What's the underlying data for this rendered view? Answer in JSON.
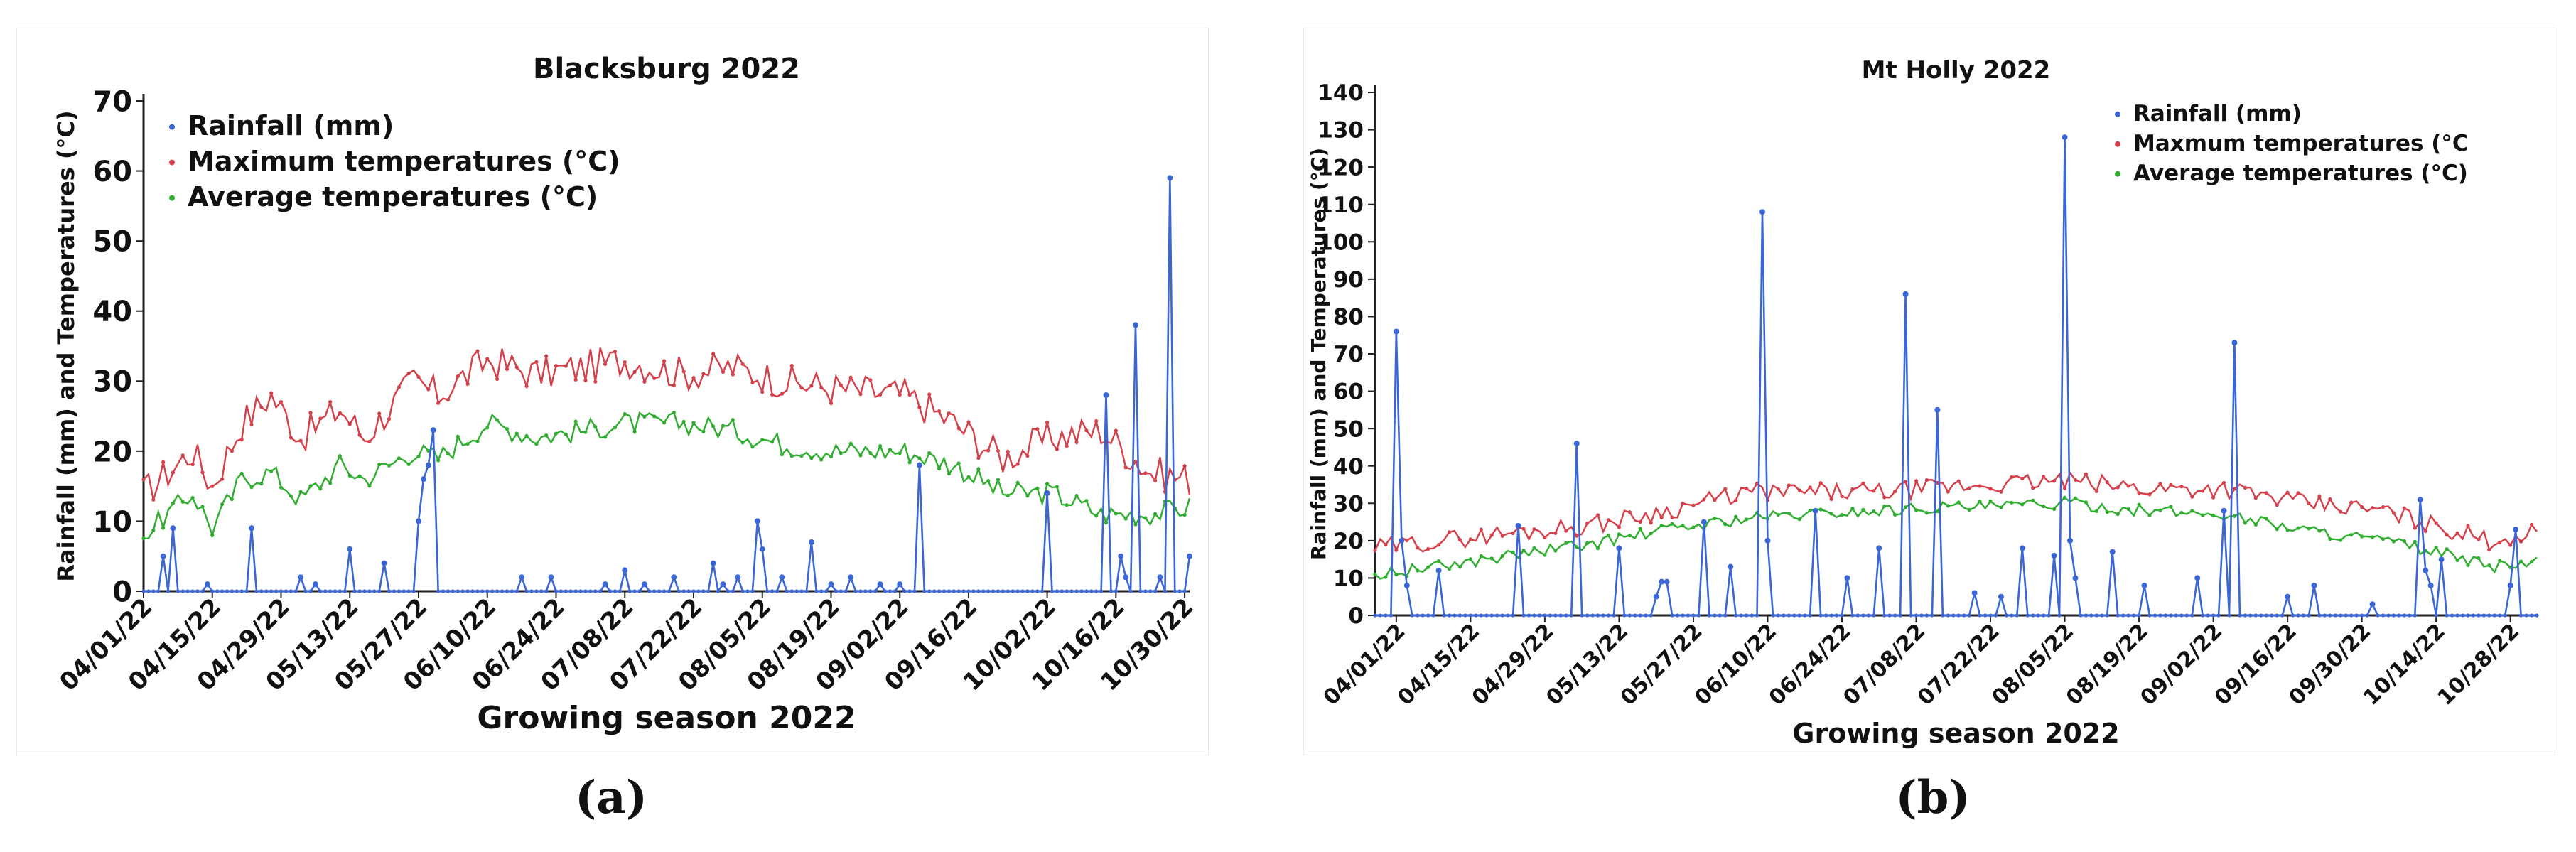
{
  "figure": {
    "captions": [
      "(a)",
      "(b)"
    ]
  },
  "chart_data": [
    {
      "type": "line",
      "title": "Blacksburg 2022",
      "xlabel": "Growing season 2022",
      "ylabel": "Rainfall (mm) and Temperatures (°C)",
      "ylim": [
        0,
        70
      ],
      "yticks": [
        0,
        10,
        20,
        30,
        40,
        50,
        60,
        70
      ],
      "xlim_dates": [
        "2022-04-01",
        "2022-10-31"
      ],
      "xtick_labels": [
        "04/01/22",
        "04/15/22",
        "04/29/22",
        "05/13/22",
        "05/27/22",
        "06/10/22",
        "06/24/22",
        "07/08/22",
        "07/22/22",
        "08/05/22",
        "08/19/22",
        "09/02/22",
        "09/16/22",
        "10/02/22",
        "10/16/22",
        "10/30/22"
      ],
      "grid": false,
      "legend_position": "top-left",
      "series": [
        {
          "name": "Rainfall (mm)",
          "color": "#3a66d6",
          "x": [
            "2022-04-01",
            "2022-04-04",
            "2022-04-05",
            "2022-04-06",
            "2022-04-07",
            "2022-04-08",
            "2022-04-11",
            "2022-04-13",
            "2022-04-14",
            "2022-04-20",
            "2022-04-22",
            "2022-04-23",
            "2022-04-24",
            "2022-04-25",
            "2022-04-26",
            "2022-05-02",
            "2022-05-03",
            "2022-05-05",
            "2022-05-06",
            "2022-05-08",
            "2022-05-09",
            "2022-05-10",
            "2022-05-12",
            "2022-05-13",
            "2022-05-14",
            "2022-05-16",
            "2022-05-17",
            "2022-05-19",
            "2022-05-20",
            "2022-05-21",
            "2022-05-26",
            "2022-05-27",
            "2022-05-28",
            "2022-05-29",
            "2022-05-30",
            "2022-06-02",
            "2022-06-03",
            "2022-06-04",
            "2022-06-12",
            "2022-06-13",
            "2022-06-14",
            "2022-06-16",
            "2022-06-17",
            "2022-06-18",
            "2022-06-22",
            "2022-06-23",
            "2022-06-24",
            "2022-06-28",
            "2022-06-29",
            "2022-06-30",
            "2022-07-02",
            "2022-07-03",
            "2022-07-04",
            "2022-07-06",
            "2022-07-07",
            "2022-07-08",
            "2022-07-11",
            "2022-07-12",
            "2022-07-13",
            "2022-07-17",
            "2022-07-18",
            "2022-07-19",
            "2022-07-26",
            "2022-07-27",
            "2022-07-28",
            "2022-07-29",
            "2022-07-30",
            "2022-07-31",
            "2022-08-03",
            "2022-08-04",
            "2022-08-05",
            "2022-08-08",
            "2022-08-09",
            "2022-08-10",
            "2022-08-14",
            "2022-08-15",
            "2022-08-16",
            "2022-08-18",
            "2022-08-19",
            "2022-08-20",
            "2022-08-22",
            "2022-08-23",
            "2022-08-24",
            "2022-08-28",
            "2022-08-29",
            "2022-08-30",
            "2022-09-01",
            "2022-09-02",
            "2022-09-03",
            "2022-09-06",
            "2022-09-07",
            "2022-09-08",
            "2022-09-12",
            "2022-09-13",
            "2022-09-14",
            "2022-09-28",
            "2022-09-29",
            "2022-09-30",
            "2022-10-01",
            "2022-10-02",
            "2022-10-03",
            "2022-10-12",
            "2022-10-13",
            "2022-10-14",
            "2022-10-15",
            "2022-10-16",
            "2022-10-17",
            "2022-10-18",
            "2022-10-19",
            "2022-10-20",
            "2022-10-21",
            "2022-10-22",
            "2022-10-25",
            "2022-10-26",
            "2022-10-27",
            "2022-10-28",
            "2022-10-29",
            "2022-10-30",
            "2022-10-31"
          ],
          "y": [
            0,
            0,
            5,
            0,
            9,
            0,
            0,
            0,
            1,
            0,
            0,
            9,
            0,
            0,
            0,
            0,
            2,
            0,
            1,
            0,
            0,
            0,
            0,
            6,
            0,
            0,
            0,
            0,
            4,
            0,
            0,
            10,
            16,
            18,
            23,
            0,
            0,
            0,
            0,
            0,
            0,
            0,
            2,
            0,
            0,
            2,
            0,
            0,
            0,
            0,
            0,
            0,
            1,
            0,
            0,
            3,
            0,
            1,
            0,
            0,
            2,
            0,
            4,
            0,
            1,
            0,
            0,
            2,
            0,
            10,
            6,
            0,
            2,
            0,
            0,
            7,
            0,
            0,
            1,
            0,
            0,
            2,
            0,
            0,
            1,
            0,
            0,
            1,
            0,
            18,
            0,
            0,
            0,
            0,
            0,
            0,
            0,
            0,
            0,
            14,
            0,
            0,
            0,
            28,
            0,
            0,
            5,
            2,
            0,
            38,
            0,
            0,
            2,
            0,
            59,
            0,
            0,
            0,
            5
          ]
        },
        {
          "name": "Maximum temperatures (°C)",
          "color": "#d6404a"
        },
        {
          "name": "Average temperatures (°C)",
          "color": "#2fae2f"
        }
      ]
    },
    {
      "type": "line",
      "title": "Mt Holly 2022",
      "xlabel": "Growing season 2022",
      "ylabel": "Rainfall (mm) and Temperatures (°C)",
      "ylim": [
        0,
        140
      ],
      "yticks": [
        0,
        10,
        20,
        30,
        40,
        50,
        60,
        70,
        80,
        90,
        100,
        110,
        120,
        130,
        140
      ],
      "xlim_dates": [
        "2022-03-28",
        "2022-11-02"
      ],
      "xtick_labels": [
        "04/01/22",
        "04/15/22",
        "04/29/22",
        "05/13/22",
        "05/27/22",
        "06/10/22",
        "06/24/22",
        "07/08/22",
        "07/22/22",
        "08/05/22",
        "08/19/22",
        "09/02/22",
        "09/16/22",
        "09/30/22",
        "10/14/22",
        "10/28/22"
      ],
      "grid": false,
      "legend_position": "top-right",
      "series": [
        {
          "name": "Rainfall (mm)",
          "color": "#3a66d6",
          "x": [
            "2022-03-28",
            "2022-03-31",
            "2022-04-01",
            "2022-04-02",
            "2022-04-03",
            "2022-04-04",
            "2022-04-08",
            "2022-04-09",
            "2022-04-10",
            "2022-04-23",
            "2022-04-24",
            "2022-04-25",
            "2022-05-04",
            "2022-05-05",
            "2022-05-06",
            "2022-05-12",
            "2022-05-13",
            "2022-05-14",
            "2022-05-19",
            "2022-05-20",
            "2022-05-21",
            "2022-05-22",
            "2022-05-23",
            "2022-05-28",
            "2022-05-29",
            "2022-05-30",
            "2022-06-02",
            "2022-06-03",
            "2022-06-04",
            "2022-06-08",
            "2022-06-09",
            "2022-06-10",
            "2022-06-11",
            "2022-06-18",
            "2022-06-19",
            "2022-06-20",
            "2022-06-24",
            "2022-06-25",
            "2022-06-26",
            "2022-06-30",
            "2022-07-01",
            "2022-07-02",
            "2022-07-05",
            "2022-07-06",
            "2022-07-07",
            "2022-07-11",
            "2022-07-12",
            "2022-07-13",
            "2022-07-18",
            "2022-07-19",
            "2022-07-20",
            "2022-07-23",
            "2022-07-24",
            "2022-07-25",
            "2022-07-27",
            "2022-07-28",
            "2022-07-29",
            "2022-08-02",
            "2022-08-03",
            "2022-08-04",
            "2022-08-05",
            "2022-08-06",
            "2022-08-07",
            "2022-08-08",
            "2022-08-09",
            "2022-08-13",
            "2022-08-14",
            "2022-08-15",
            "2022-08-19",
            "2022-08-20",
            "2022-08-21",
            "2022-08-29",
            "2022-08-30",
            "2022-08-31",
            "2022-09-03",
            "2022-09-04",
            "2022-09-05",
            "2022-09-06",
            "2022-09-07",
            "2022-09-15",
            "2022-09-16",
            "2022-09-17",
            "2022-09-20",
            "2022-09-21",
            "2022-09-22",
            "2022-10-01",
            "2022-10-02",
            "2022-10-03",
            "2022-10-10",
            "2022-10-11",
            "2022-10-12",
            "2022-10-13",
            "2022-10-14",
            "2022-10-15",
            "2022-10-16",
            "2022-10-27",
            "2022-10-28",
            "2022-10-29",
            "2022-10-30"
          ],
          "y": [
            0,
            0,
            76,
            20,
            8,
            0,
            0,
            12,
            0,
            0,
            24,
            0,
            0,
            46,
            0,
            0,
            18,
            0,
            0,
            5,
            9,
            9,
            0,
            0,
            25,
            0,
            0,
            13,
            0,
            0,
            108,
            20,
            0,
            0,
            28,
            0,
            0,
            10,
            0,
            0,
            18,
            0,
            0,
            86,
            0,
            0,
            55,
            0,
            0,
            6,
            0,
            0,
            5,
            0,
            0,
            18,
            0,
            0,
            16,
            0,
            128,
            20,
            10,
            0,
            0,
            0,
            17,
            0,
            0,
            8,
            0,
            0,
            10,
            0,
            0,
            28,
            0,
            73,
            0,
            0,
            5,
            0,
            0,
            8,
            0,
            0,
            3,
            0,
            0,
            31,
            12,
            8,
            0,
            15,
            0,
            0,
            8,
            23,
            0
          ]
        },
        {
          "name": "Maxmum temperatures (°C",
          "color": "#d6404a"
        },
        {
          "name": "Average temperatures (°C)",
          "color": "#2fae2f"
        }
      ]
    }
  ]
}
